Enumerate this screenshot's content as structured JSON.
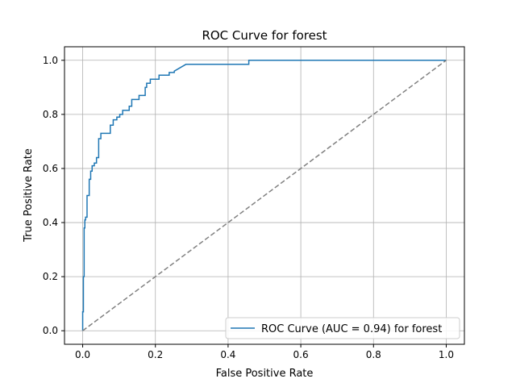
{
  "chart_data": {
    "type": "line",
    "title": "ROC Curve for forest",
    "xlabel": "False Positive Rate",
    "ylabel": "True Positive Rate",
    "xlim": [
      -0.05,
      1.05
    ],
    "ylim": [
      -0.05,
      1.05
    ],
    "xticks": [
      0.0,
      0.2,
      0.4,
      0.6,
      0.8,
      1.0
    ],
    "yticks": [
      0.0,
      0.2,
      0.4,
      0.6,
      0.8,
      1.0
    ],
    "xtick_labels": [
      "0.0",
      "0.2",
      "0.4",
      "0.6",
      "0.8",
      "1.0"
    ],
    "ytick_labels": [
      "0.0",
      "0.2",
      "0.4",
      "0.6",
      "0.8",
      "1.0"
    ],
    "grid": true,
    "legend_position": "lower-right",
    "series": [
      {
        "name": "ROC Curve (AUC = 0.94) for forest",
        "color": "#1f77b4",
        "style": "solid",
        "x": [
          0.0,
          0.0,
          0.002,
          0.002,
          0.004,
          0.004,
          0.006,
          0.006,
          0.008,
          0.008,
          0.012,
          0.012,
          0.018,
          0.018,
          0.022,
          0.022,
          0.026,
          0.026,
          0.032,
          0.032,
          0.038,
          0.038,
          0.044,
          0.044,
          0.05,
          0.05,
          0.056,
          0.056,
          0.076,
          0.076,
          0.084,
          0.084,
          0.094,
          0.094,
          0.102,
          0.102,
          0.11,
          0.11,
          0.128,
          0.128,
          0.135,
          0.135,
          0.155,
          0.155,
          0.172,
          0.172,
          0.176,
          0.176,
          0.186,
          0.186,
          0.21,
          0.21,
          0.238,
          0.238,
          0.252,
          0.252,
          0.284,
          0.457,
          0.457,
          1.0
        ],
        "y": [
          0.0,
          0.07,
          0.07,
          0.2,
          0.2,
          0.38,
          0.38,
          0.41,
          0.41,
          0.42,
          0.42,
          0.5,
          0.5,
          0.56,
          0.56,
          0.59,
          0.59,
          0.61,
          0.61,
          0.62,
          0.62,
          0.64,
          0.64,
          0.71,
          0.71,
          0.73,
          0.73,
          0.73,
          0.73,
          0.76,
          0.76,
          0.78,
          0.78,
          0.79,
          0.79,
          0.8,
          0.8,
          0.815,
          0.815,
          0.83,
          0.83,
          0.855,
          0.855,
          0.87,
          0.87,
          0.9,
          0.9,
          0.915,
          0.915,
          0.93,
          0.93,
          0.945,
          0.945,
          0.955,
          0.955,
          0.96,
          0.985,
          0.985,
          1.0,
          1.0
        ]
      },
      {
        "color": "#808080",
        "style": "dashed",
        "x": [
          0.0,
          1.0
        ],
        "y": [
          0.0,
          1.0
        ]
      }
    ]
  }
}
